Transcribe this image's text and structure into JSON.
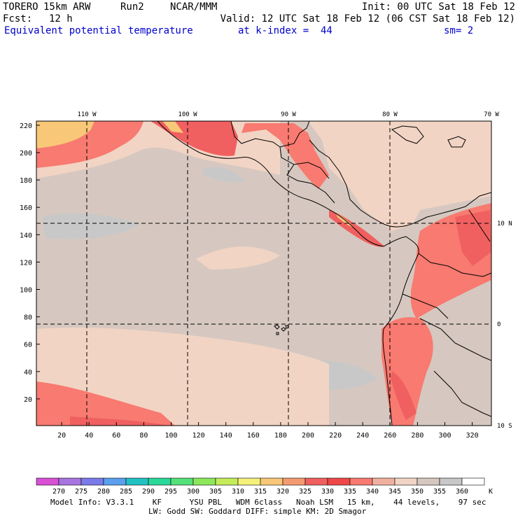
{
  "header": {
    "model": "TORERO",
    "resolution": "15km ARW",
    "run": "Run2",
    "org": "NCAR/MMM",
    "init": "Init: 00 UTC Sat 18 Feb 12",
    "fcst_label": "Fcst:",
    "fcst_value": "12 h",
    "valid": "Valid: 12 UTC Sat 18 Feb 12 (06 CST Sat 18 Feb 12)",
    "field": "Equivalent potential temperature",
    "level": "at k-index =  44",
    "smooth": "sm= 2"
  },
  "map": {
    "lon_labels": [
      "110 W",
      "100 W",
      "90 W",
      "80 W",
      "70 W"
    ],
    "lat_labels": [
      "10 N",
      "0",
      "10 S"
    ],
    "y_ticks": [
      "20",
      "40",
      "60",
      "80",
      "100",
      "120",
      "140",
      "160",
      "180",
      "200",
      "220"
    ],
    "x_ticks": [
      "20",
      "40",
      "60",
      "80",
      "100",
      "120",
      "140",
      "160",
      "180",
      "200",
      "220",
      "240",
      "260",
      "280",
      "300",
      "320"
    ]
  },
  "colorbar": {
    "labels": [
      "270",
      "275",
      "280",
      "285",
      "290",
      "295",
      "300",
      "305",
      "310",
      "315",
      "320",
      "325",
      "330",
      "335",
      "340",
      "345",
      "350",
      "355",
      "360"
    ],
    "unit": "K",
    "colors": [
      "#d94fd6",
      "#a874e0",
      "#7a7aea",
      "#5aa0ee",
      "#22c2c2",
      "#2ad89a",
      "#55e07a",
      "#8ce85a",
      "#c4ec5a",
      "#f4f07a",
      "#f8c878",
      "#f49a70",
      "#f06060",
      "#f04848",
      "#f87a70",
      "#f0b0a0",
      "#f2d4c4",
      "#d6c8c0",
      "#c8c8c8",
      "#ffffff"
    ]
  },
  "footer": {
    "line1": "Model Info: V3.3.1    KF      YSU PBL   WDM 6class   Noah LSM   15 km,    44 levels,    97 sec",
    "line2": "LW: Godd SW: Goddard DIFF: simple KM: 2D Smagor"
  }
}
